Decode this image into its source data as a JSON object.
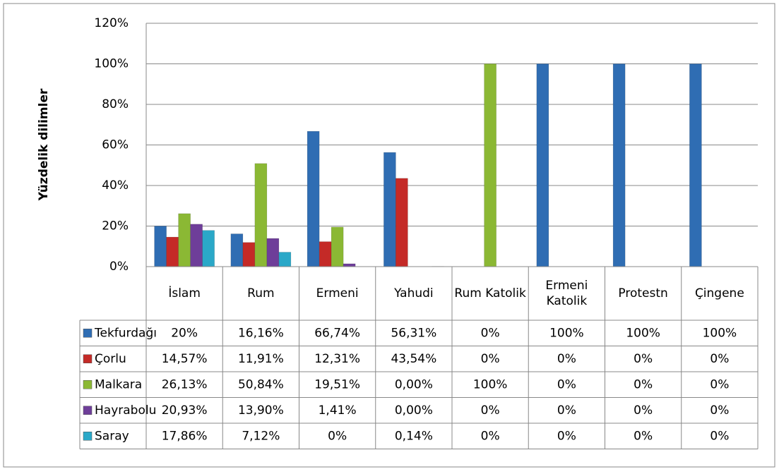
{
  "chart_data": {
    "type": "bar",
    "y_label": "Yüzdelik dilimler",
    "categories": [
      "İslam",
      "Rum",
      "Ermeni",
      "Yahudi",
      "Rum Katolik",
      "Ermeni Katolik",
      "Protestn",
      "Çingene"
    ],
    "series": [
      {
        "name": "Tekfurdağı",
        "color": "#2f6db3",
        "values": [
          20,
          16.16,
          66.74,
          56.31,
          0,
          100,
          100,
          100
        ],
        "value_labels": [
          "20%",
          "16,16%",
          "66,74%",
          "56,31%",
          "0%",
          "100%",
          "100%",
          "100%"
        ]
      },
      {
        "name": "Çorlu",
        "color": "#c42a27",
        "values": [
          14.57,
          11.91,
          12.31,
          43.54,
          0,
          0,
          0,
          0
        ],
        "value_labels": [
          "14,57%",
          "11,91%",
          "12,31%",
          "43,54%",
          "0%",
          "0%",
          "0%",
          "0%"
        ]
      },
      {
        "name": "Malkara",
        "color": "#8bb834",
        "values": [
          26.13,
          50.84,
          19.51,
          0.0,
          100,
          0,
          0,
          0
        ],
        "value_labels": [
          "26,13%",
          "50,84%",
          "19,51%",
          "0,00%",
          "100%",
          "0%",
          "0%",
          "0%"
        ]
      },
      {
        "name": "Hayrabolu",
        "color": "#6e3e99",
        "values": [
          20.93,
          13.9,
          1.41,
          0.0,
          0,
          0,
          0,
          0
        ],
        "value_labels": [
          "20,93%",
          "13,90%",
          "1,41%",
          "0,00%",
          "0%",
          "0%",
          "0%",
          "0%"
        ]
      },
      {
        "name": "Saray",
        "color": "#2aa8c8",
        "values": [
          17.86,
          7.12,
          0,
          0.14,
          0,
          0,
          0,
          0
        ],
        "value_labels": [
          "17,86%",
          "7,12%",
          "0%",
          "0,14%",
          "0%",
          "0%",
          "0%",
          "0%"
        ]
      }
    ],
    "ylim": [
      0,
      120
    ],
    "yticks": [
      {
        "value": 0,
        "label": "0%"
      },
      {
        "value": 20,
        "label": "20%"
      },
      {
        "value": 40,
        "label": "40%"
      },
      {
        "value": 60,
        "label": "60%"
      },
      {
        "value": 80,
        "label": "80%"
      },
      {
        "value": 100,
        "label": "100%"
      },
      {
        "value": 120,
        "label": "120%"
      }
    ],
    "grid": true
  }
}
